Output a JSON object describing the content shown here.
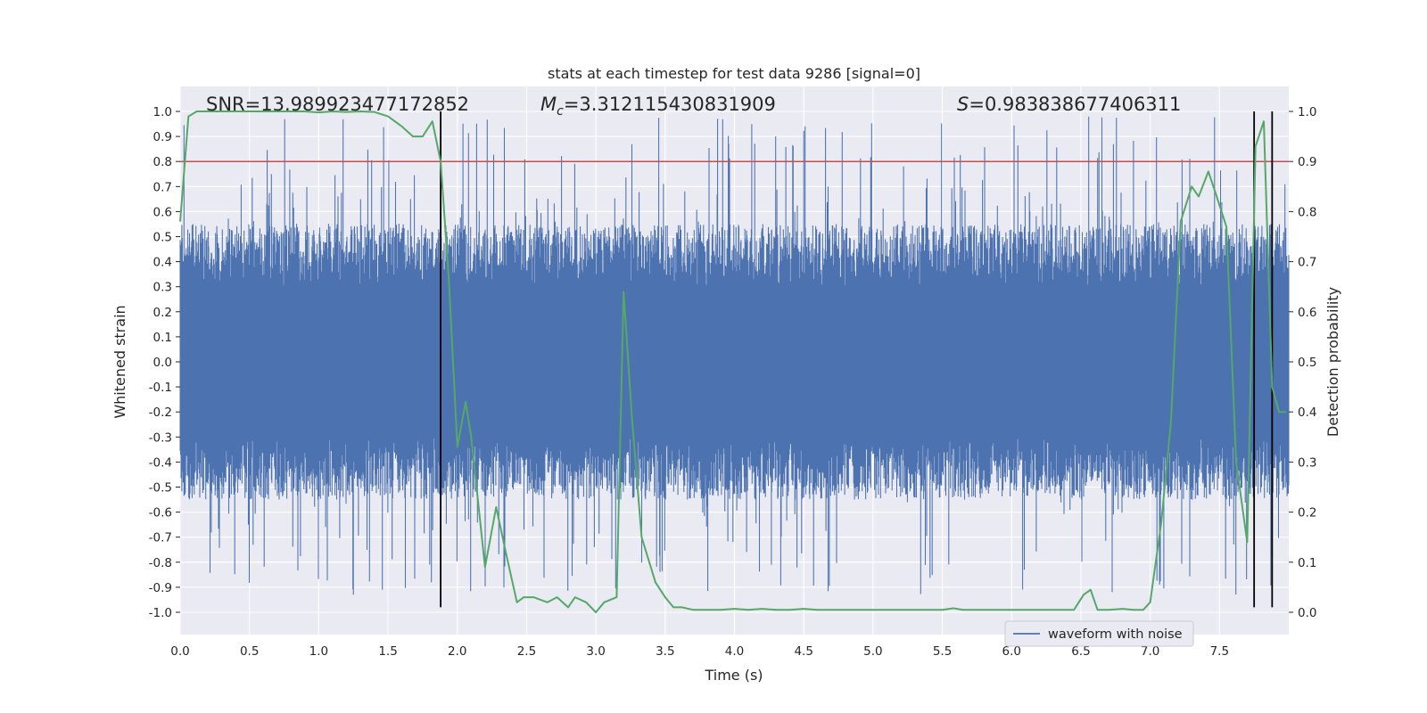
{
  "chart_data": {
    "type": "line",
    "title": "stats at each timestep for test data 9286 [signal=0]",
    "xlabel": "Time (s)",
    "ylabel_left": "Whitened strain",
    "ylabel_right": "Detection probability",
    "xlim": [
      0,
      8
    ],
    "ylim_left": [
      -1.05,
      1.05
    ],
    "ylim_right": [
      0,
      1
    ],
    "x_ticks": [
      "0.0",
      "0.5",
      "1.0",
      "1.5",
      "2.0",
      "2.5",
      "3.0",
      "3.5",
      "4.0",
      "4.5",
      "5.0",
      "5.5",
      "6.0",
      "6.5",
      "7.0",
      "7.5"
    ],
    "y_ticks_left": [
      "1.0",
      "0.9",
      "0.8",
      "0.7",
      "0.6",
      "0.5",
      "0.4",
      "0.3",
      "0.2",
      "0.1",
      "0.0",
      "-0.1",
      "-0.2",
      "-0.3",
      "-0.4",
      "-0.5",
      "-0.6",
      "-0.7",
      "-0.8",
      "-0.9",
      "-1.0"
    ],
    "y_ticks_right": [
      "1.0",
      "0.9",
      "0.8",
      "0.7",
      "0.6",
      "0.5",
      "0.4",
      "0.3",
      "0.2",
      "0.1",
      "0.0"
    ],
    "grid": true,
    "legend": {
      "placement": "lower-right",
      "entries": [
        "waveform with noise"
      ]
    },
    "annotations": {
      "snr": "SNR=13.989923477172852",
      "mc_symbol": "M",
      "mc_sub": "c",
      "mc_value": "=3.312115430831909",
      "s_symbol": "S",
      "s_value": "=0.983838677406311"
    },
    "threshold_line": {
      "axis": "left",
      "y": 0.8,
      "color": "#c44e52"
    },
    "vertical_lines": [
      1.88,
      7.75,
      7.88
    ],
    "vertical_line_range_left": [
      -0.98,
      1.0
    ],
    "series": [
      {
        "name": "waveform with noise",
        "axis": "left",
        "color": "#4c72b0",
        "envelope": {
          "typical_peak": 0.55,
          "max_peak": 0.98,
          "min_trough": -0.93
        }
      },
      {
        "axis": "right",
        "color": "#55a868",
        "x": [
          0.0,
          0.06,
          0.12,
          0.2,
          0.3,
          0.4,
          0.5,
          0.6,
          0.7,
          0.8,
          0.9,
          1.0,
          1.1,
          1.2,
          1.3,
          1.4,
          1.5,
          1.6,
          1.68,
          1.75,
          1.82,
          1.88,
          1.94,
          2.0,
          2.06,
          2.1,
          2.15,
          2.2,
          2.28,
          2.35,
          2.43,
          2.48,
          2.55,
          2.65,
          2.72,
          2.8,
          2.85,
          2.93,
          3.0,
          3.06,
          3.15,
          3.2,
          3.26,
          3.33,
          3.43,
          3.5,
          3.56,
          3.62,
          3.7,
          3.8,
          3.9,
          4.0,
          4.1,
          4.2,
          4.3,
          4.4,
          4.5,
          4.6,
          4.7,
          4.8,
          4.9,
          5.0,
          5.1,
          5.2,
          5.3,
          5.4,
          5.5,
          5.58,
          5.65,
          5.75,
          5.9,
          6.0,
          6.1,
          6.2,
          6.3,
          6.45,
          6.52,
          6.57,
          6.62,
          6.7,
          6.8,
          6.88,
          6.95,
          7.0,
          7.08,
          7.15,
          7.22,
          7.3,
          7.35,
          7.42,
          7.48,
          7.55,
          7.62,
          7.7,
          7.76,
          7.82,
          7.88,
          7.93,
          7.98
        ],
        "y": [
          0.78,
          0.99,
          1.0,
          1.0,
          1.0,
          1.0,
          1.0,
          1.0,
          1.0,
          1.0,
          1.0,
          0.998,
          1.0,
          0.999,
          1.0,
          0.999,
          0.99,
          0.97,
          0.95,
          0.95,
          0.98,
          0.9,
          0.66,
          0.33,
          0.42,
          0.35,
          0.22,
          0.09,
          0.21,
          0.12,
          0.02,
          0.03,
          0.03,
          0.02,
          0.03,
          0.01,
          0.03,
          0.02,
          0.0,
          0.02,
          0.03,
          0.64,
          0.39,
          0.15,
          0.06,
          0.03,
          0.01,
          0.01,
          0.005,
          0.005,
          0.005,
          0.007,
          0.005,
          0.007,
          0.005,
          0.005,
          0.007,
          0.005,
          0.005,
          0.005,
          0.005,
          0.005,
          0.005,
          0.005,
          0.005,
          0.005,
          0.005,
          0.008,
          0.005,
          0.005,
          0.005,
          0.005,
          0.005,
          0.005,
          0.005,
          0.005,
          0.035,
          0.045,
          0.005,
          0.005,
          0.007,
          0.005,
          0.005,
          0.02,
          0.18,
          0.38,
          0.78,
          0.85,
          0.83,
          0.88,
          0.83,
          0.77,
          0.3,
          0.14,
          0.93,
          0.98,
          0.45,
          0.4,
          0.4
        ]
      }
    ]
  }
}
